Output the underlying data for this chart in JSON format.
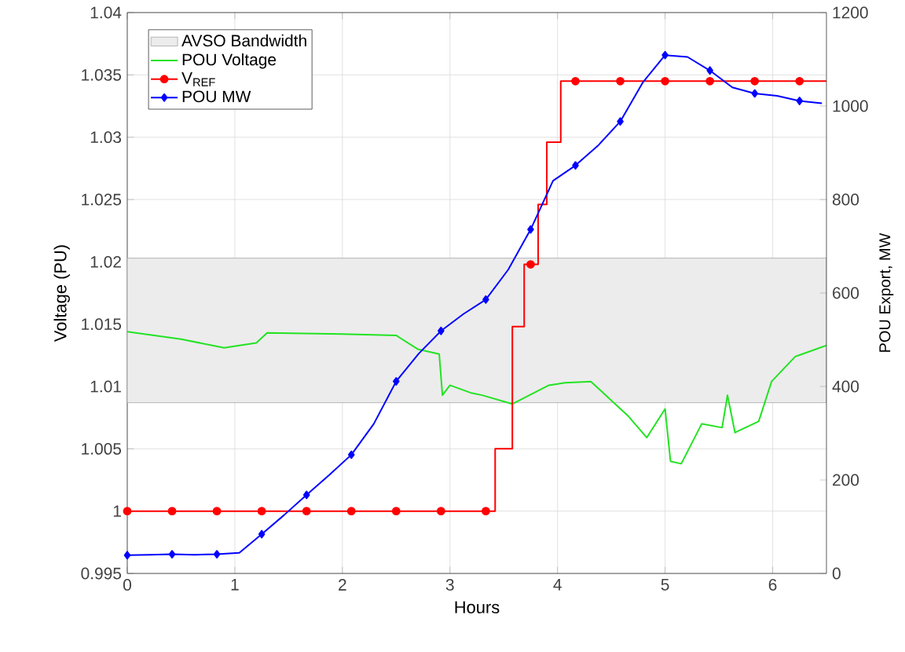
{
  "chart_data": {
    "type": "line",
    "xlabel": "Hours",
    "ylabel": "Voltage (PU)",
    "y2label": "POU Export, MW",
    "xlim": [
      0,
      6.5
    ],
    "ylim": [
      0.995,
      1.04
    ],
    "y2lim": [
      0,
      1200
    ],
    "xticks": [
      0,
      1,
      2,
      3,
      4,
      5,
      6
    ],
    "yticks": [
      0.995,
      1,
      1.005,
      1.01,
      1.015,
      1.02,
      1.025,
      1.03,
      1.035,
      1.04
    ],
    "y2ticks": [
      0,
      200,
      400,
      600,
      800,
      1000,
      1200
    ],
    "grid": true,
    "legend": "top left",
    "bands": [
      {
        "axis": "y",
        "from": 1.0087,
        "to": 1.0203,
        "label": "AVSO Bandwidth",
        "color": "#ececec"
      }
    ],
    "series": [
      {
        "name": "POU Voltage",
        "color": "#22e322",
        "x": [
          0,
          0.5,
          0.9,
          1.2,
          1.3,
          2.0,
          2.5,
          2.7,
          2.9,
          2.93,
          3.0,
          3.19,
          3.3,
          3.58,
          3.92,
          4.07,
          4.31,
          4.41,
          4.66,
          4.83,
          5.0,
          5.05,
          5.15,
          5.34,
          5.53,
          5.58,
          5.65,
          5.87,
          5.99,
          6.21,
          6.5
        ],
        "values": [
          1.0144,
          1.0138,
          1.0131,
          1.0135,
          1.0143,
          1.0142,
          1.0141,
          1.013,
          1.0126,
          1.0093,
          1.0101,
          1.0095,
          1.0093,
          1.0086,
          1.0101,
          1.0103,
          1.0104,
          1.0096,
          1.0076,
          1.0059,
          1.0082,
          1.004,
          1.0038,
          1.007,
          1.0067,
          1.0093,
          1.0063,
          1.0072,
          1.0104,
          1.0124,
          1.0133
        ]
      },
      {
        "name": "V$_{REF}$",
        "type": "step",
        "color": "#ff0000",
        "marker": "circle",
        "x": [
          0,
          0.4167,
          0.8333,
          1.25,
          1.6667,
          2.0833,
          2.5,
          2.9167,
          3.3333,
          3.42,
          3.58,
          3.69,
          3.75,
          3.82,
          3.9,
          4.03,
          4.1667,
          4.5833,
          5.0,
          5.4167,
          5.8333,
          6.25,
          6.5
        ],
        "values": [
          1,
          1,
          1,
          1,
          1,
          1,
          1,
          1,
          1,
          1.005,
          1.0148,
          1.0198,
          1.0198,
          1.0246,
          1.0296,
          1.0345,
          1.0345,
          1.0345,
          1.0345,
          1.0345,
          1.0345,
          1.0345,
          1.0345
        ]
      },
      {
        "name": "POU MW",
        "axis": "y2",
        "color": "#0000ff",
        "marker": "diamond",
        "x": [
          0,
          0.2083,
          0.4167,
          0.625,
          0.8333,
          1.0417,
          1.25,
          1.4583,
          1.6667,
          1.875,
          2.0833,
          2.2917,
          2.5,
          2.7083,
          2.9167,
          3.125,
          3.3333,
          3.5417,
          3.75,
          3.9583,
          4.1667,
          4.375,
          4.5833,
          4.7917,
          5.0,
          5.2083,
          5.4167,
          5.625,
          5.8333,
          6.0417,
          6.25,
          6.4583
        ],
        "values": [
          39,
          40,
          41,
          40,
          41,
          44,
          84,
          125,
          168,
          210,
          254,
          320,
          411,
          470,
          519,
          555,
          586,
          650,
          736,
          840,
          873,
          915,
          967,
          1050,
          1109,
          1105,
          1076,
          1040,
          1027,
          1022,
          1011,
          1006
        ]
      }
    ]
  }
}
